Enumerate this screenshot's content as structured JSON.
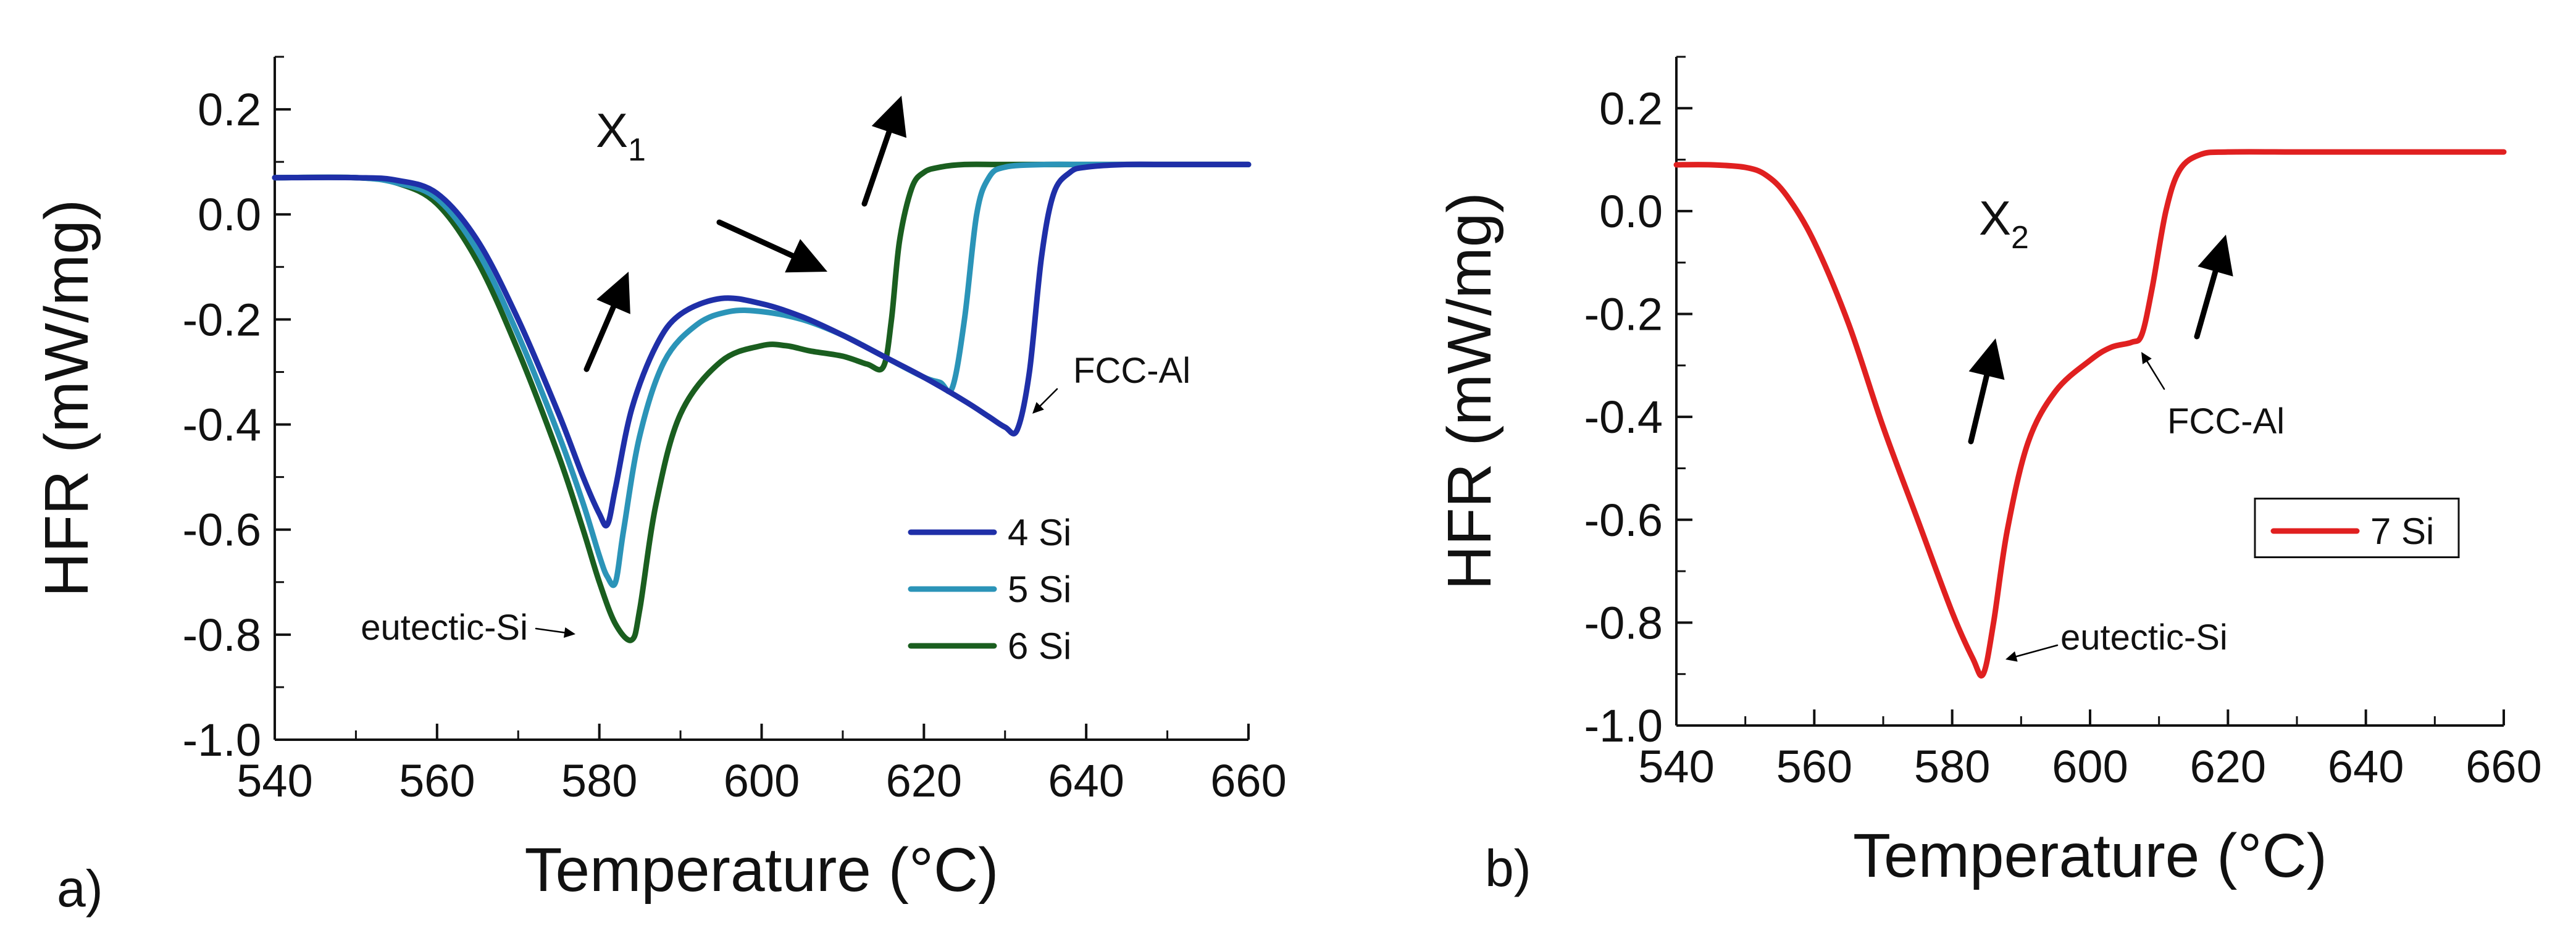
{
  "chart_data": [
    {
      "type": "line",
      "panel_label": "a)",
      "title": "",
      "xlabel": "Temperature (°C)",
      "ylabel": "HFR (mW/mg)",
      "xlim": [
        540,
        660
      ],
      "ylim": [
        -1.0,
        0.3
      ],
      "xticks": [
        "540",
        "560",
        "580",
        "600",
        "620",
        "640",
        "660"
      ],
      "yticks": [
        "0.2",
        "0.0",
        "-0.2",
        "-0.4",
        "-0.6",
        "-0.8",
        "-1.0"
      ],
      "legend_position": "lower-right",
      "series": [
        {
          "name": "4 Si",
          "color": "#1f2fa8",
          "x": [
            540,
            550,
            555,
            560,
            565,
            570,
            575,
            578,
            580,
            581,
            582,
            584,
            587,
            590,
            595,
            600,
            605,
            610,
            615,
            620,
            625,
            628,
            630,
            631.5,
            633,
            634.5,
            636,
            638,
            640,
            645,
            650,
            660
          ],
          "y": [
            0.07,
            0.07,
            0.065,
            0.04,
            -0.05,
            -0.2,
            -0.38,
            -0.5,
            -0.57,
            -0.59,
            -0.52,
            -0.37,
            -0.25,
            -0.19,
            -0.16,
            -0.17,
            -0.195,
            -0.23,
            -0.27,
            -0.31,
            -0.355,
            -0.385,
            -0.405,
            -0.41,
            -0.3,
            -0.08,
            0.04,
            0.08,
            0.09,
            0.095,
            0.095,
            0.095
          ]
        },
        {
          "name": "5 Si",
          "color": "#2b94b8",
          "x": [
            540,
            550,
            555,
            560,
            565,
            570,
            575,
            578,
            580,
            581,
            582,
            583,
            585,
            588,
            592,
            596,
            600,
            605,
            610,
            615,
            620,
            622,
            623.5,
            625,
            626.5,
            628,
            630,
            635,
            640,
            650,
            660
          ],
          "y": [
            0.07,
            0.07,
            0.06,
            0.03,
            -0.07,
            -0.23,
            -0.42,
            -0.55,
            -0.65,
            -0.69,
            -0.7,
            -0.6,
            -0.42,
            -0.28,
            -0.21,
            -0.185,
            -0.185,
            -0.2,
            -0.23,
            -0.27,
            -0.31,
            -0.32,
            -0.33,
            -0.2,
            0.0,
            0.07,
            0.09,
            0.095,
            0.095,
            0.095,
            0.095
          ]
        },
        {
          "name": "6 Si",
          "color": "#1a5e1f",
          "x": [
            540,
            550,
            555,
            560,
            565,
            570,
            575,
            578,
            580,
            582,
            584,
            585,
            587,
            590,
            595,
            600,
            603,
            606,
            610,
            613,
            615,
            616,
            617,
            618.5,
            620,
            622,
            625,
            630,
            640,
            650,
            660
          ],
          "y": [
            0.07,
            0.07,
            0.06,
            0.02,
            -0.09,
            -0.26,
            -0.46,
            -0.6,
            -0.7,
            -0.78,
            -0.81,
            -0.75,
            -0.55,
            -0.38,
            -0.28,
            -0.25,
            -0.25,
            -0.26,
            -0.27,
            -0.285,
            -0.29,
            -0.2,
            -0.05,
            0.05,
            0.08,
            0.09,
            0.095,
            0.095,
            0.095,
            0.095,
            0.095
          ]
        }
      ],
      "annotations": [
        {
          "text": "FCC-Al",
          "x": 632,
          "y": -0.41
        },
        {
          "text": "eutectic-Si",
          "x": 584,
          "y": -0.81
        }
      ],
      "region_label": {
        "main": "X",
        "sub": "1"
      }
    },
    {
      "type": "line",
      "panel_label": "b)",
      "title": "",
      "xlabel": "Temperature (°C)",
      "ylabel": "HFR (mW/mg)",
      "xlim": [
        540,
        660
      ],
      "ylim": [
        -1.0,
        0.3
      ],
      "xticks": [
        "540",
        "560",
        "580",
        "600",
        "620",
        "640",
        "660"
      ],
      "yticks": [
        "0.2",
        "0.0",
        "-0.2",
        "-0.4",
        "-0.6",
        "-0.8",
        "-1.0"
      ],
      "legend_position": "right",
      "series": [
        {
          "name": "7 Si",
          "color": "#e02020",
          "x": [
            540,
            545,
            550,
            553,
            556,
            560,
            565,
            570,
            575,
            580,
            583,
            584.5,
            586,
            588,
            591,
            595,
            600,
            603,
            606,
            607.5,
            609,
            611,
            613,
            616,
            620,
            630,
            640,
            660
          ],
          "y": [
            0.09,
            0.09,
            0.085,
            0.07,
            0.03,
            -0.06,
            -0.22,
            -0.42,
            -0.6,
            -0.78,
            -0.87,
            -0.9,
            -0.8,
            -0.62,
            -0.45,
            -0.35,
            -0.29,
            -0.265,
            -0.255,
            -0.24,
            -0.15,
            0.0,
            0.08,
            0.11,
            0.115,
            0.115,
            0.115,
            0.115
          ]
        }
      ],
      "annotations": [
        {
          "text": "FCC-Al",
          "x": 607,
          "y": -0.24
        },
        {
          "text": "eutectic-Si",
          "x": 585,
          "y": -0.9
        }
      ],
      "region_label": {
        "main": "X",
        "sub": "2"
      }
    }
  ]
}
